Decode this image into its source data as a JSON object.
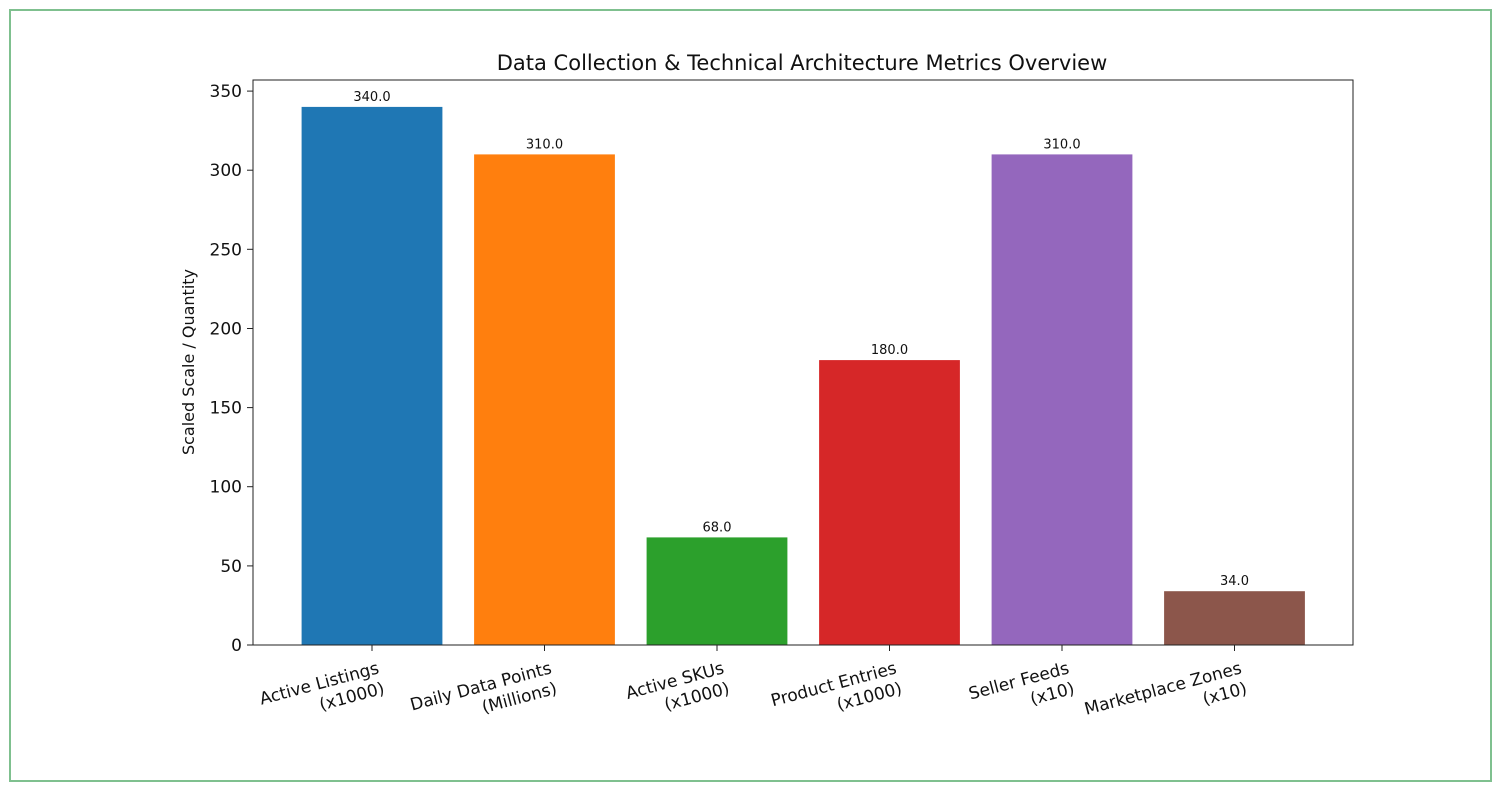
{
  "chart_data": {
    "type": "bar",
    "title": "Data Collection & Technical Architecture Metrics Overview",
    "xlabel": "",
    "ylabel": "Scaled Scale / Quantity",
    "ylim": [
      0,
      357
    ],
    "yticks": [
      0,
      50,
      100,
      150,
      200,
      250,
      300,
      350
    ],
    "grid": false,
    "categories": [
      [
        "Active Listings",
        "(x1000)"
      ],
      [
        "Daily Data Points",
        "(Millions)"
      ],
      [
        "Active SKUs",
        "(x1000)"
      ],
      [
        "Product Entries",
        "(x1000)"
      ],
      [
        "Seller Feeds",
        "(x10)"
      ],
      [
        "Marketplace Zones",
        "(x10)"
      ]
    ],
    "values": [
      340.0,
      310.0,
      68.0,
      180.0,
      310.0,
      34.0
    ],
    "value_labels": [
      "340.0",
      "310.0",
      "68.0",
      "180.0",
      "310.0",
      "34.0"
    ],
    "colors": [
      "#1f77b4",
      "#ff7f0e",
      "#2ca02c",
      "#d62728",
      "#9467bd",
      "#8c564b"
    ]
  }
}
